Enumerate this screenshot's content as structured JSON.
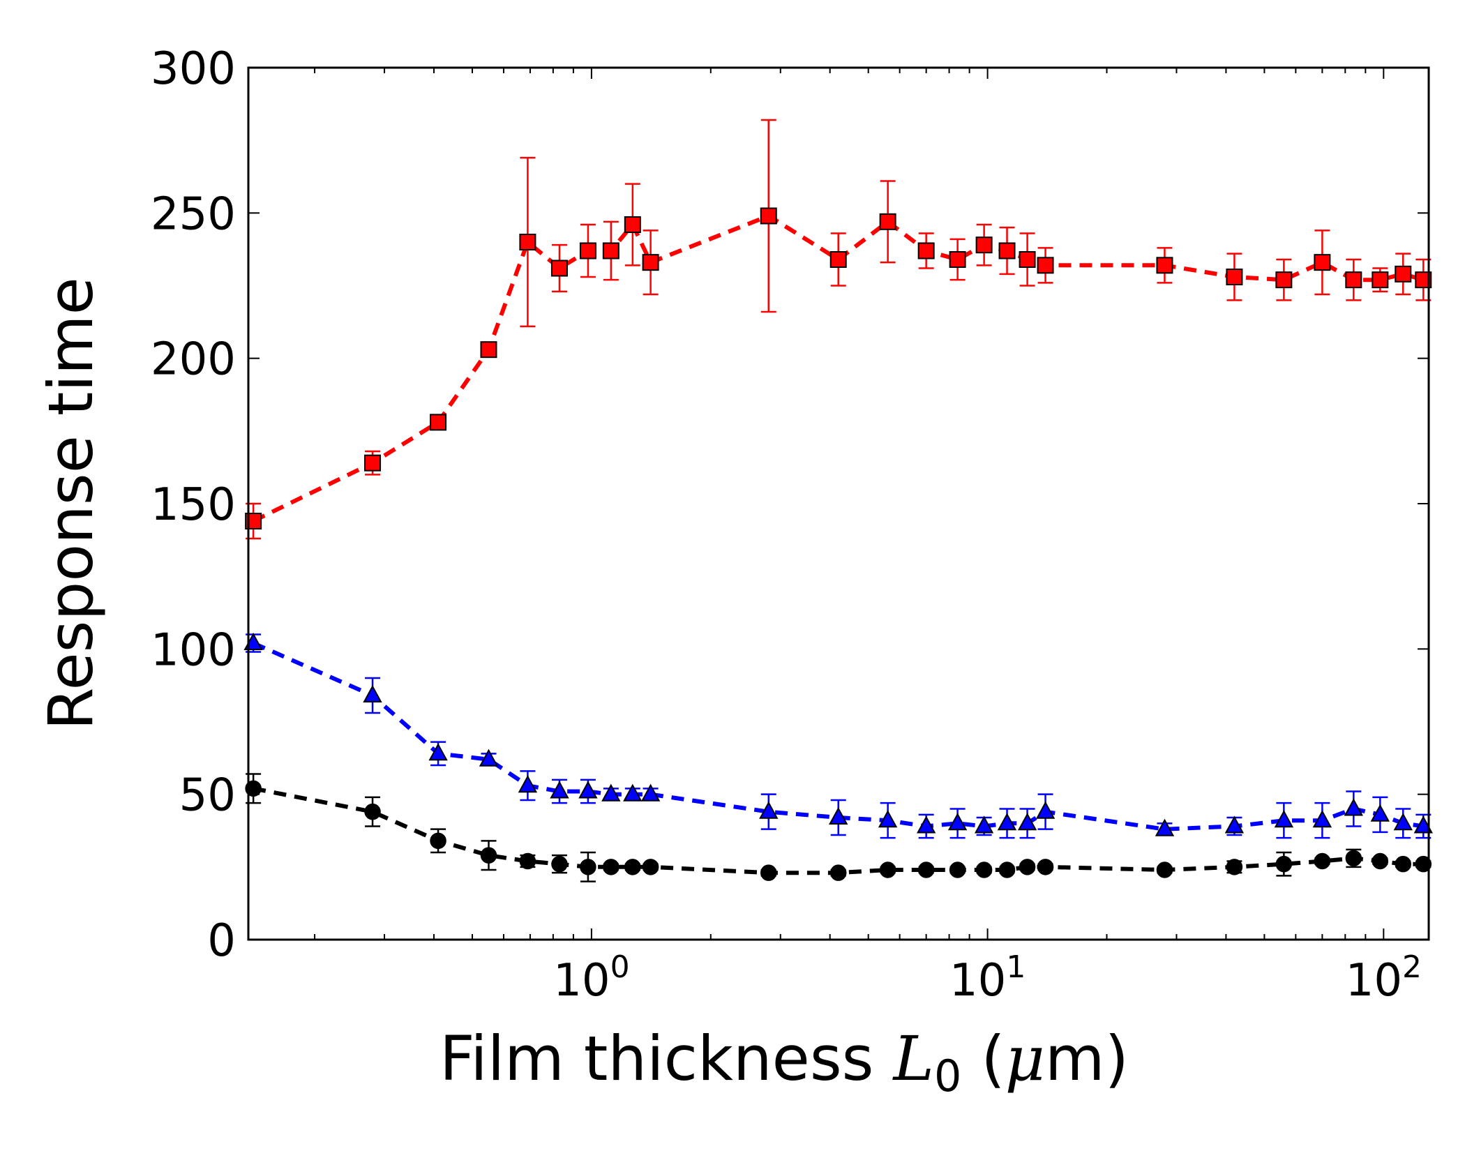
{
  "chart_data": {
    "type": "line",
    "title": "",
    "xlabel_parts": {
      "prefix": "Film thickness ",
      "symbol": "L",
      "subscript": "0",
      "open": " (",
      "mu": "μ",
      "unit": "m)"
    },
    "ylabel": "Response time",
    "xscale": "log",
    "xlim": [
      0.136,
      130
    ],
    "ylim": [
      0,
      300
    ],
    "yticks": [
      0,
      50,
      100,
      150,
      200,
      250,
      300
    ],
    "xticks": [
      {
        "value": 1,
        "base": "10",
        "exp": "0"
      },
      {
        "value": 10,
        "base": "10",
        "exp": "1"
      },
      {
        "value": 100,
        "base": "10",
        "exp": "2"
      }
    ],
    "legend": "none",
    "grid": false,
    "series": [
      {
        "name": "red squares",
        "color": "#ff0000",
        "marker": "square",
        "x": [
          0.14,
          0.28,
          0.41,
          0.55,
          0.69,
          0.83,
          0.98,
          1.12,
          1.27,
          1.41,
          2.8,
          4.2,
          5.6,
          7.0,
          8.4,
          9.8,
          11.2,
          12.6,
          14.0,
          28,
          42,
          56,
          70,
          84,
          98,
          112,
          126
        ],
        "y": [
          144,
          164,
          178,
          203,
          240,
          231,
          237,
          237,
          246,
          233,
          249,
          234,
          247,
          237,
          234,
          239,
          237,
          234,
          232,
          232,
          228,
          227,
          233,
          227,
          227,
          229,
          227
        ],
        "err": [
          6,
          4,
          0,
          0,
          29,
          8,
          9,
          10,
          14,
          11,
          33,
          9,
          14,
          6,
          7,
          7,
          8,
          9,
          6,
          6,
          8,
          7,
          11,
          7,
          4,
          7,
          7
        ]
      },
      {
        "name": "blue triangles",
        "color": "#0000ff",
        "marker": "triangle",
        "x": [
          0.14,
          0.28,
          0.41,
          0.55,
          0.69,
          0.83,
          0.98,
          1.12,
          1.27,
          1.41,
          2.8,
          4.2,
          5.6,
          7.0,
          8.4,
          9.8,
          11.2,
          12.6,
          14.0,
          28,
          42,
          56,
          70,
          84,
          98,
          112,
          126
        ],
        "y": [
          102,
          84,
          64,
          62,
          53,
          51,
          51,
          50,
          50,
          50,
          44,
          42,
          41,
          39,
          40,
          39,
          40,
          40,
          44,
          38,
          39,
          41,
          41,
          45,
          43,
          40,
          39
        ],
        "err": [
          3,
          6,
          4,
          2,
          5,
          4,
          4,
          2,
          2,
          2,
          6,
          6,
          6,
          4,
          5,
          3,
          5,
          5,
          6,
          2,
          3,
          6,
          6,
          6,
          6,
          5,
          4
        ]
      },
      {
        "name": "black circles",
        "color": "#000000",
        "marker": "circle",
        "x": [
          0.14,
          0.28,
          0.41,
          0.55,
          0.69,
          0.83,
          0.98,
          1.12,
          1.27,
          1.41,
          2.8,
          4.2,
          5.6,
          7.0,
          8.4,
          9.8,
          11.2,
          12.6,
          14.0,
          28,
          42,
          56,
          70,
          84,
          98,
          112,
          126
        ],
        "y": [
          52,
          44,
          34,
          29,
          27,
          26,
          25,
          25,
          25,
          25,
          23,
          23,
          24,
          24,
          24,
          24,
          24,
          25,
          25,
          24,
          25,
          26,
          27,
          28,
          27,
          26,
          26
        ],
        "err": [
          5,
          5,
          4,
          5,
          2,
          3,
          5,
          1,
          1,
          1,
          1,
          1,
          1,
          1,
          1,
          1,
          1,
          1,
          1,
          1,
          2,
          4,
          1,
          3,
          1,
          1,
          1
        ]
      }
    ]
  }
}
